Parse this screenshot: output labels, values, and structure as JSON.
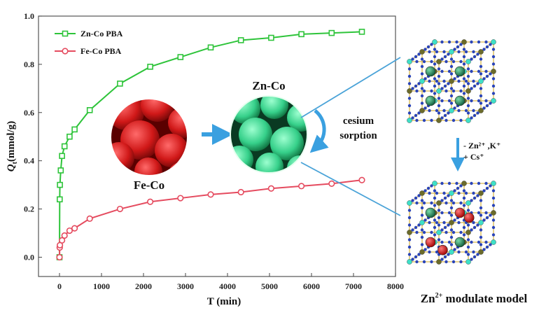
{
  "chart_data": {
    "type": "line",
    "xlabel": "T (min)",
    "ylabel_main": "Q",
    "ylabel_sub": "t",
    "ylabel_unit": "(mmol/g)",
    "xlim": [
      -500,
      8000
    ],
    "ylim": [
      -0.08,
      1.0
    ],
    "x_ticks": [
      0,
      1000,
      2000,
      3000,
      4000,
      5000,
      6000,
      7000,
      8000
    ],
    "y_ticks": [
      0.0,
      0.2,
      0.4,
      0.6,
      0.8,
      1.0
    ],
    "x_tick_labels": [
      "0",
      "1000",
      "2000",
      "3000",
      "4000",
      "5000",
      "6000",
      "7000",
      "8000"
    ],
    "y_tick_labels": [
      "0.0",
      "0.2",
      "0.4",
      "0.6",
      "0.8",
      "1.0"
    ],
    "legend_position": "top-left",
    "series": [
      {
        "name": "Zn-Co PBA",
        "color": "#2ec43a",
        "marker": "square",
        "x": [
          0,
          5,
          10,
          30,
          60,
          120,
          240,
          360,
          720,
          1440,
          2160,
          2880,
          3600,
          4320,
          5040,
          5760,
          6480,
          7200
        ],
        "y": [
          0.0,
          0.24,
          0.3,
          0.36,
          0.42,
          0.46,
          0.5,
          0.53,
          0.61,
          0.72,
          0.79,
          0.83,
          0.87,
          0.9,
          0.91,
          0.925,
          0.93,
          0.935
        ]
      },
      {
        "name": "Fe-Co PBA",
        "color": "#e54b5f",
        "marker": "circle",
        "x": [
          0,
          5,
          10,
          60,
          120,
          240,
          360,
          720,
          1440,
          2160,
          2880,
          3600,
          4320,
          5040,
          5760,
          6480,
          7200
        ],
        "y": [
          0.0,
          0.04,
          0.05,
          0.07,
          0.09,
          0.11,
          0.12,
          0.16,
          0.2,
          0.23,
          0.245,
          0.26,
          0.27,
          0.285,
          0.295,
          0.305,
          0.32
        ]
      }
    ]
  },
  "inset": {
    "fe_co_label": "Fe-Co",
    "zn_co_label": "Zn-Co",
    "process_line1": "cesium",
    "process_line2": "sorption",
    "arrow_color": "#3aa0e0"
  },
  "model": {
    "exchange_line1": "- Zn²⁺ ,K⁺",
    "exchange_line2": "+ Cs⁺",
    "caption_prefix": "Zn",
    "caption_sup": "2+",
    "caption_suffix": " modulate model"
  }
}
